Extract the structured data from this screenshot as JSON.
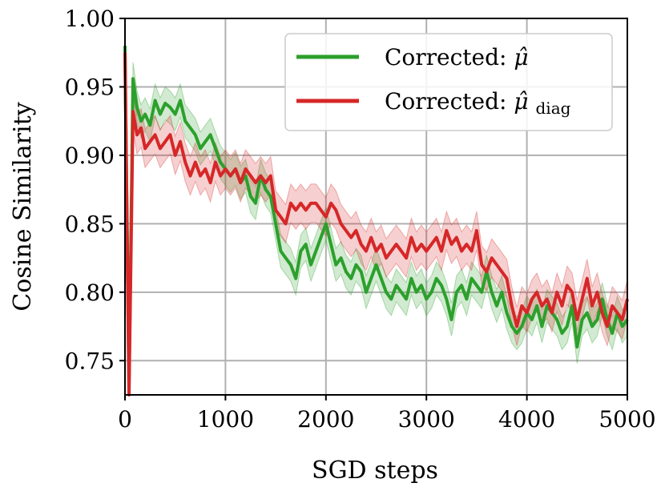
{
  "chart_data": {
    "type": "line",
    "title": "",
    "xlabel": "SGD steps",
    "ylabel": "Cosine Similarity",
    "xlim": [
      0,
      5000
    ],
    "ylim": [
      0.725,
      1.0
    ],
    "xticks": [
      0,
      1000,
      2000,
      3000,
      4000,
      5000
    ],
    "xtick_labels": [
      "0",
      "1000",
      "2000",
      "3000",
      "4000",
      "5000"
    ],
    "yticks": [
      0.75,
      0.8,
      0.85,
      0.9,
      0.95,
      1.0
    ],
    "ytick_labels": [
      "0.75",
      "0.80",
      "0.85",
      "0.90",
      "0.95",
      "1.00"
    ],
    "grid": true,
    "legend_position": "top-right",
    "series": [
      {
        "name": "Corrected: μ̂",
        "legend_main": "Corrected: ",
        "legend_symbol": "μ̂",
        "legend_sub": "",
        "color": "#2ca02c",
        "x": [
          0,
          40,
          80,
          120,
          160,
          200,
          250,
          300,
          350,
          400,
          450,
          500,
          550,
          600,
          650,
          700,
          750,
          800,
          850,
          900,
          950,
          1000,
          1050,
          1100,
          1150,
          1200,
          1250,
          1300,
          1350,
          1400,
          1450,
          1500,
          1550,
          1600,
          1650,
          1700,
          1750,
          1800,
          1850,
          1900,
          1950,
          2000,
          2050,
          2100,
          2150,
          2200,
          2250,
          2300,
          2350,
          2400,
          2450,
          2500,
          2550,
          2600,
          2650,
          2700,
          2750,
          2800,
          2850,
          2900,
          2950,
          3000,
          3050,
          3100,
          3150,
          3200,
          3250,
          3300,
          3350,
          3400,
          3450,
          3500,
          3550,
          3600,
          3650,
          3700,
          3750,
          3800,
          3850,
          3900,
          3950,
          4000,
          4050,
          4100,
          4150,
          4200,
          4250,
          4300,
          4350,
          4400,
          4450,
          4500,
          4550,
          4600,
          4650,
          4700,
          4750,
          4800,
          4850,
          4900,
          4950,
          5000
        ],
        "values": [
          0.98,
          0.73,
          0.956,
          0.935,
          0.925,
          0.93,
          0.922,
          0.94,
          0.93,
          0.938,
          0.935,
          0.93,
          0.94,
          0.925,
          0.92,
          0.915,
          0.905,
          0.91,
          0.915,
          0.905,
          0.895,
          0.89,
          0.885,
          0.89,
          0.88,
          0.885,
          0.87,
          0.865,
          0.885,
          0.875,
          0.87,
          0.85,
          0.83,
          0.825,
          0.82,
          0.81,
          0.83,
          0.835,
          0.82,
          0.83,
          0.84,
          0.85,
          0.835,
          0.82,
          0.825,
          0.815,
          0.81,
          0.82,
          0.815,
          0.8,
          0.81,
          0.82,
          0.81,
          0.8,
          0.795,
          0.805,
          0.8,
          0.795,
          0.81,
          0.8,
          0.805,
          0.795,
          0.8,
          0.81,
          0.805,
          0.795,
          0.78,
          0.8,
          0.805,
          0.795,
          0.81,
          0.805,
          0.8,
          0.815,
          0.8,
          0.79,
          0.8,
          0.785,
          0.775,
          0.77,
          0.775,
          0.785,
          0.78,
          0.79,
          0.775,
          0.79,
          0.785,
          0.78,
          0.77,
          0.775,
          0.79,
          0.76,
          0.78,
          0.785,
          0.775,
          0.78,
          0.795,
          0.78,
          0.77,
          0.785,
          0.775,
          0.78
        ],
        "band_width": 0.012
      },
      {
        "name": "Corrected: μ̂_diag",
        "legend_main": "Corrected: ",
        "legend_symbol": "μ̂",
        "legend_sub": "diag",
        "color": "#d62728",
        "x": [
          0,
          40,
          80,
          120,
          160,
          200,
          250,
          300,
          350,
          400,
          450,
          500,
          550,
          600,
          650,
          700,
          750,
          800,
          850,
          900,
          950,
          1000,
          1050,
          1100,
          1150,
          1200,
          1250,
          1300,
          1350,
          1400,
          1450,
          1500,
          1550,
          1600,
          1650,
          1700,
          1750,
          1800,
          1850,
          1900,
          1950,
          2000,
          2050,
          2100,
          2150,
          2200,
          2250,
          2300,
          2350,
          2400,
          2450,
          2500,
          2550,
          2600,
          2650,
          2700,
          2750,
          2800,
          2850,
          2900,
          2950,
          3000,
          3050,
          3100,
          3150,
          3200,
          3250,
          3300,
          3350,
          3400,
          3450,
          3500,
          3550,
          3600,
          3650,
          3700,
          3750,
          3800,
          3850,
          3900,
          3950,
          4000,
          4050,
          4100,
          4150,
          4200,
          4250,
          4300,
          4350,
          4400,
          4450,
          4500,
          4550,
          4600,
          4650,
          4700,
          4750,
          4800,
          4850,
          4900,
          4950,
          5000
        ],
        "values": [
          0.975,
          0.725,
          0.932,
          0.915,
          0.92,
          0.905,
          0.91,
          0.915,
          0.905,
          0.91,
          0.915,
          0.9,
          0.91,
          0.895,
          0.885,
          0.895,
          0.885,
          0.89,
          0.88,
          0.895,
          0.885,
          0.89,
          0.885,
          0.89,
          0.88,
          0.89,
          0.885,
          0.88,
          0.885,
          0.88,
          0.885,
          0.86,
          0.855,
          0.85,
          0.865,
          0.86,
          0.865,
          0.86,
          0.865,
          0.865,
          0.86,
          0.855,
          0.865,
          0.86,
          0.85,
          0.845,
          0.84,
          0.845,
          0.835,
          0.83,
          0.84,
          0.83,
          0.835,
          0.825,
          0.83,
          0.835,
          0.83,
          0.825,
          0.84,
          0.83,
          0.835,
          0.83,
          0.835,
          0.84,
          0.83,
          0.845,
          0.835,
          0.84,
          0.83,
          0.835,
          0.83,
          0.845,
          0.82,
          0.815,
          0.825,
          0.82,
          0.815,
          0.81,
          0.79,
          0.775,
          0.79,
          0.785,
          0.795,
          0.8,
          0.79,
          0.795,
          0.785,
          0.8,
          0.79,
          0.805,
          0.8,
          0.78,
          0.795,
          0.81,
          0.79,
          0.8,
          0.785,
          0.775,
          0.79,
          0.785,
          0.78,
          0.795
        ],
        "band_width": 0.014
      }
    ]
  }
}
